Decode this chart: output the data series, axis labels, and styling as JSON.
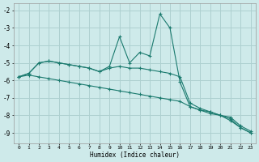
{
  "xlabel": "Humidex (Indice chaleur)",
  "bg_color": "#ceeaea",
  "grid_color": "#aed0d0",
  "line_color": "#1a7a6e",
  "xlim": [
    -0.5,
    23.5
  ],
  "ylim": [
    -9.6,
    -1.6
  ],
  "yticks": [
    -9,
    -8,
    -7,
    -6,
    -5,
    -4,
    -3,
    -2
  ],
  "xticks": [
    0,
    1,
    2,
    3,
    4,
    5,
    6,
    7,
    8,
    9,
    10,
    11,
    12,
    13,
    14,
    15,
    16,
    17,
    18,
    19,
    20,
    21,
    22,
    23
  ],
  "series": [
    {
      "x": [
        0,
        1,
        2,
        3,
        4,
        5,
        6,
        7,
        8,
        9,
        10,
        11,
        12,
        13,
        14,
        15,
        16,
        17,
        18,
        19,
        20,
        21,
        22,
        23
      ],
      "y": [
        -5.8,
        -5.6,
        -5.0,
        -4.9,
        -5.0,
        -5.1,
        -5.2,
        -5.3,
        -5.5,
        -5.2,
        -3.5,
        -5.0,
        -4.4,
        -4.6,
        -2.2,
        -3.0,
        -6.1,
        -7.5,
        -7.7,
        -7.8,
        -8.0,
        -8.1,
        -8.6,
        -8.9
      ]
    },
    {
      "x": [
        0,
        1,
        2,
        3,
        4,
        5,
        6,
        7,
        8,
        9,
        10,
        11,
        12,
        13,
        14,
        15,
        16,
        17,
        18,
        19,
        20,
        21,
        22,
        23
      ],
      "y": [
        -5.8,
        -5.6,
        -5.0,
        -4.9,
        -5.0,
        -5.1,
        -5.2,
        -5.3,
        -5.5,
        -5.3,
        -5.2,
        -5.3,
        -5.3,
        -5.4,
        -5.5,
        -5.6,
        -5.8,
        -7.3,
        -7.6,
        -7.8,
        -8.0,
        -8.2,
        -8.7,
        -9.0
      ]
    },
    {
      "x": [
        0,
        1,
        2,
        3,
        4,
        5,
        6,
        7,
        8,
        9,
        10,
        11,
        12,
        13,
        14,
        15,
        16,
        17,
        18,
        19,
        20,
        21,
        22,
        23
      ],
      "y": [
        -5.8,
        -5.7,
        -5.8,
        -5.9,
        -6.0,
        -6.1,
        -6.2,
        -6.3,
        -6.4,
        -6.5,
        -6.6,
        -6.7,
        -6.8,
        -6.9,
        -7.0,
        -7.1,
        -7.2,
        -7.5,
        -7.7,
        -7.9,
        -8.0,
        -8.3,
        -8.7,
        -9.0
      ]
    }
  ]
}
